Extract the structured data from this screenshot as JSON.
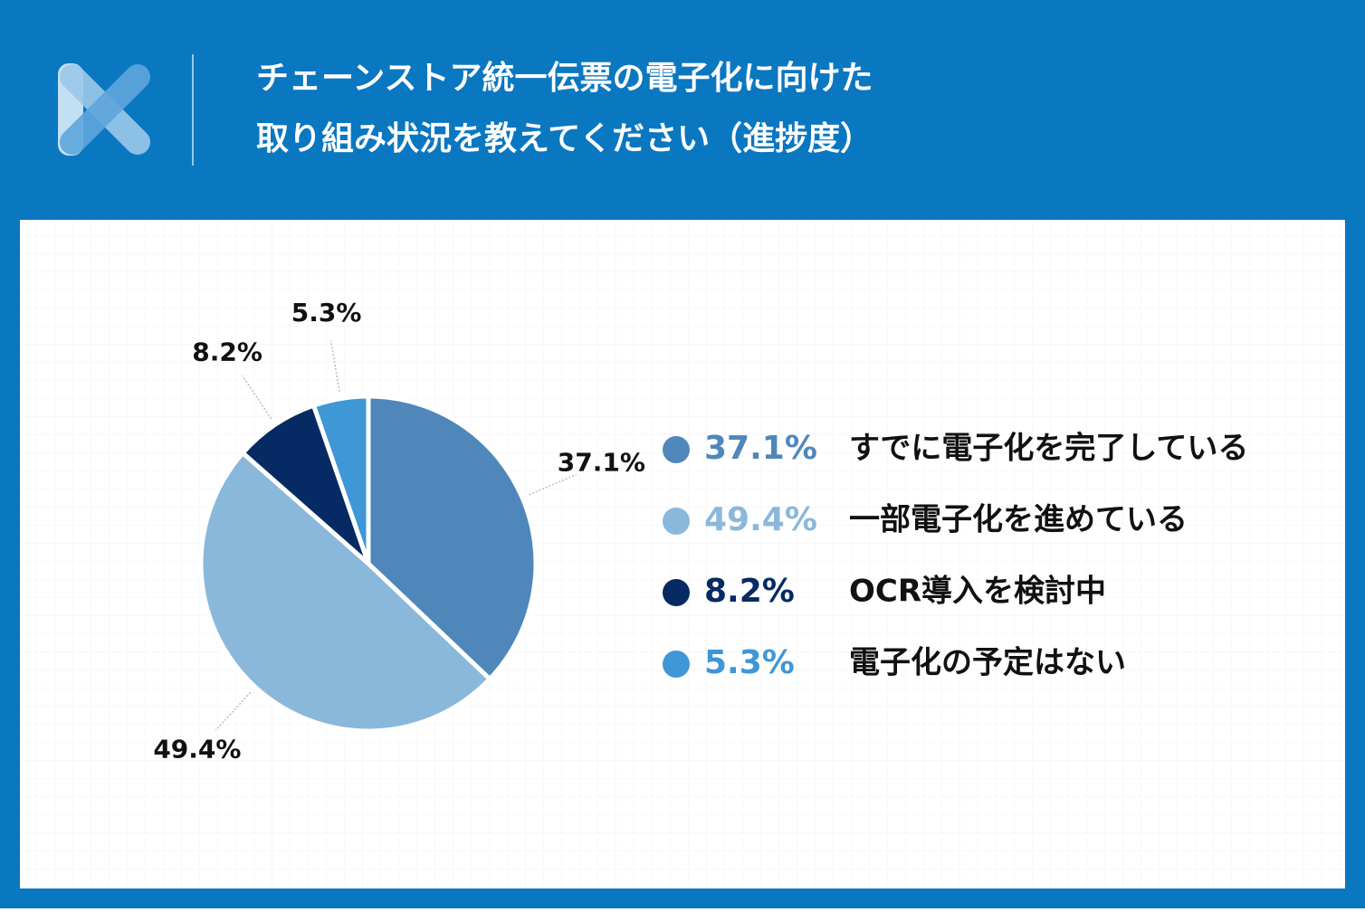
{
  "chart_data": {
    "type": "pie",
    "title": [
      "チェーンストア統一伝票の電子化に向けた",
      "取り組み状況を教えてください（進捗度）"
    ],
    "categories": [
      "すでに電子化を完了している",
      "一部電子化を進めている",
      "OCR導入を検討中",
      "電子化の予定はない"
    ],
    "values": [
      37.1,
      49.4,
      8.2,
      5.3
    ],
    "value_labels": [
      "37.1%",
      "49.4%",
      "8.2%",
      "5.3%"
    ],
    "colors": [
      "#4f87bb",
      "#8ab8db",
      "#062a63",
      "#3f97d6"
    ]
  }
}
